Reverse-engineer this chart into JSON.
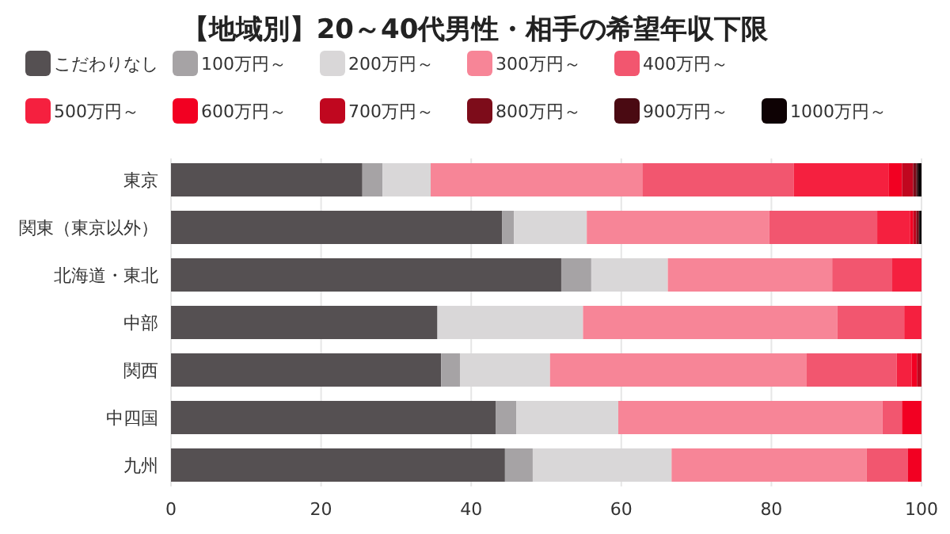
{
  "chart_data": {
    "type": "bar",
    "orientation": "horizontal",
    "stacked": true,
    "title": "【地域別】20～40代男性・相手の希望年収下限",
    "categories": [
      "東京",
      "関東（東京以外）",
      "北海道・東北",
      "中部",
      "関西",
      "中四国",
      "九州"
    ],
    "xlim": [
      0,
      100
    ],
    "xticks": [
      0,
      20,
      40,
      60,
      80,
      100
    ],
    "grid": "x",
    "legend": "top",
    "series": [
      {
        "name": "こだわりなし",
        "color": "#555052",
        "values": [
          25.5,
          44.1,
          52.0,
          35.5,
          36.0,
          43.3,
          44.5
        ]
      },
      {
        "name": "100万円～",
        "color": "#a6a3a5",
        "values": [
          2.7,
          1.6,
          4.0,
          0,
          2.5,
          2.7,
          3.7
        ]
      },
      {
        "name": "200万円～",
        "color": "#d9d7d8",
        "values": [
          6.4,
          9.7,
          10.2,
          19.4,
          12.0,
          13.6,
          18.5
        ]
      },
      {
        "name": "300万円～",
        "color": "#f78597",
        "values": [
          28.2,
          24.3,
          21.9,
          33.9,
          34.2,
          35.2,
          26.0
        ]
      },
      {
        "name": "400万円～",
        "color": "#f2566f",
        "values": [
          20.2,
          14.4,
          8.0,
          8.9,
          12.0,
          2.6,
          5.5
        ]
      },
      {
        "name": "500万円～",
        "color": "#f5203f",
        "values": [
          12.6,
          4.4,
          3.9,
          2.3,
          2.0,
          0,
          0
        ]
      },
      {
        "name": "600万円～",
        "color": "#f20022",
        "values": [
          1.8,
          0.4,
          0,
          0,
          0.7,
          2.6,
          1.8
        ]
      },
      {
        "name": "700万円～",
        "color": "#c0071f",
        "values": [
          1.5,
          0.4,
          0,
          0,
          0.6,
          0,
          0
        ]
      },
      {
        "name": "800万円～",
        "color": "#7d0c1a",
        "values": [
          0.4,
          0.3,
          0,
          0,
          0,
          0,
          0
        ]
      },
      {
        "name": "900万円～",
        "color": "#4a0a12",
        "values": [
          0.2,
          0.1,
          0,
          0,
          0,
          0,
          0
        ]
      },
      {
        "name": "1000万円～",
        "color": "#0e0204",
        "values": [
          0.5,
          0.3,
          0,
          0,
          0,
          0,
          0
        ]
      }
    ]
  }
}
